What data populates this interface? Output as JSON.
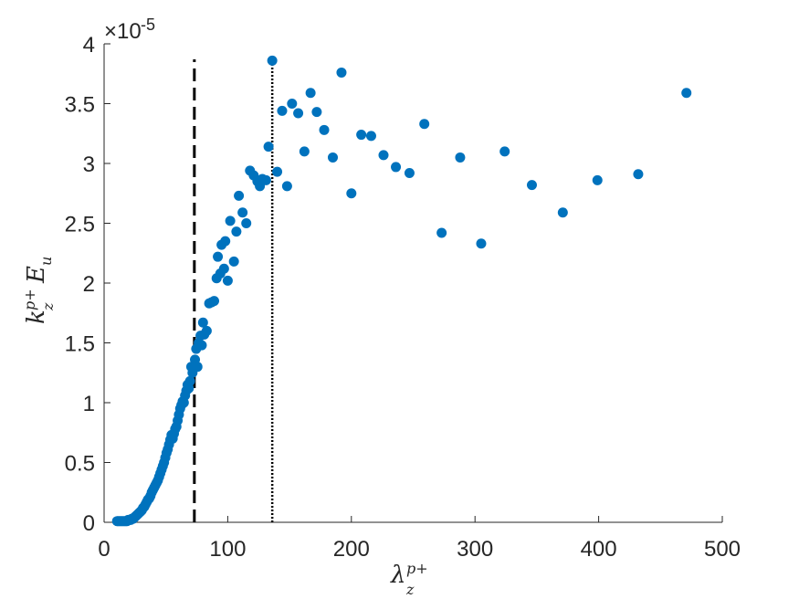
{
  "chart_data": {
    "type": "scatter",
    "xlim": [
      0,
      500
    ],
    "ylim": [
      0,
      4
    ],
    "x_ticks": [
      0,
      100,
      200,
      300,
      400,
      500
    ],
    "y_ticks": [
      0,
      0.5,
      1,
      1.5,
      2,
      2.5,
      3,
      3.5,
      4
    ],
    "x_tick_labels": [
      "0",
      "100",
      "200",
      "300",
      "400",
      "500"
    ],
    "y_tick_labels": [
      "0",
      "0.5",
      "1",
      "1.5",
      "2",
      "2.5",
      "3",
      "3.5",
      "4"
    ],
    "y_multiplier": {
      "base": "×10",
      "exponent": "-5"
    },
    "xlabel": {
      "main": "λ",
      "sup": "p+",
      "sub": "z"
    },
    "ylabel": {
      "main": "k",
      "sup": "p+",
      "sub": "z",
      "tail": "E",
      "tail_sub": "u"
    },
    "marker_color": "#0072BD",
    "grid": false,
    "vertical_lines": [
      {
        "x": 73,
        "style": "dashed",
        "y_top": 3.87
      },
      {
        "x": 136,
        "style": "dotted",
        "y_top": 3.87
      }
    ],
    "points": [
      [
        10.5,
        0.01
      ],
      [
        11.5,
        0.01
      ],
      [
        12.5,
        0.01
      ],
      [
        13.5,
        0.01
      ],
      [
        14.5,
        0.01
      ],
      [
        15.5,
        0.01
      ],
      [
        16.5,
        0.01
      ],
      [
        17.5,
        0.01
      ],
      [
        18.5,
        0.01
      ],
      [
        19.5,
        0.02
      ],
      [
        20.5,
        0.02
      ],
      [
        21.5,
        0.02
      ],
      [
        22.5,
        0.03
      ],
      [
        23.5,
        0.03
      ],
      [
        24.5,
        0.04
      ],
      [
        25.5,
        0.05
      ],
      [
        26.5,
        0.06
      ],
      [
        27.5,
        0.07
      ],
      [
        28.5,
        0.08
      ],
      [
        29.5,
        0.09
      ],
      [
        30.5,
        0.1
      ],
      [
        31.5,
        0.12
      ],
      [
        32.5,
        0.13
      ],
      [
        33.5,
        0.15
      ],
      [
        34.5,
        0.17
      ],
      [
        35.5,
        0.19
      ],
      [
        36.5,
        0.2
      ],
      [
        37.5,
        0.22
      ],
      [
        38.5,
        0.25
      ],
      [
        39.5,
        0.27
      ],
      [
        40.5,
        0.29
      ],
      [
        41.5,
        0.31
      ],
      [
        42.5,
        0.33
      ],
      [
        43.5,
        0.35
      ],
      [
        44.5,
        0.38
      ],
      [
        45.5,
        0.41
      ],
      [
        46.5,
        0.44
      ],
      [
        47.5,
        0.47
      ],
      [
        48.5,
        0.5
      ],
      [
        49.5,
        0.54
      ],
      [
        50.5,
        0.58
      ],
      [
        51.5,
        0.61
      ],
      [
        52.5,
        0.65
      ],
      [
        53.5,
        0.69
      ],
      [
        54.5,
        0.73
      ],
      [
        55.5,
        0.7
      ],
      [
        56.5,
        0.74
      ],
      [
        57.5,
        0.78
      ],
      [
        58.5,
        0.8
      ],
      [
        59.5,
        0.85
      ],
      [
        60.5,
        0.9
      ],
      [
        61.5,
        0.95
      ],
      [
        62.5,
        0.98
      ],
      [
        63.5,
        1.01
      ],
      [
        64.5,
        1.0
      ],
      [
        65.5,
        1.06
      ],
      [
        66.5,
        1.1
      ],
      [
        67.5,
        1.15
      ],
      [
        68.5,
        1.12
      ],
      [
        69.5,
        1.18
      ],
      [
        70.5,
        1.3
      ],
      [
        71.5,
        1.25
      ],
      [
        72.5,
        1.29
      ],
      [
        73.5,
        1.36
      ],
      [
        74.5,
        1.45
      ],
      [
        75.5,
        1.3
      ],
      [
        76.5,
        1.5
      ],
      [
        78,
        1.56
      ],
      [
        79,
        1.48
      ],
      [
        80,
        1.67
      ],
      [
        81,
        1.57
      ],
      [
        83,
        1.6
      ],
      [
        85,
        1.83
      ],
      [
        87,
        1.84
      ],
      [
        89,
        1.85
      ],
      [
        91,
        2.04
      ],
      [
        92,
        2.22
      ],
      [
        94,
        2.08
      ],
      [
        95,
        2.32
      ],
      [
        97,
        2.12
      ],
      [
        98,
        2.35
      ],
      [
        100,
        2.02
      ],
      [
        102,
        2.52
      ],
      [
        105,
        2.18
      ],
      [
        107,
        2.43
      ],
      [
        109,
        2.73
      ],
      [
        112,
        2.59
      ],
      [
        115,
        2.5
      ],
      [
        118,
        2.94
      ],
      [
        121,
        2.9
      ],
      [
        124,
        2.85
      ],
      [
        126,
        2.81
      ],
      [
        128,
        2.87
      ],
      [
        131,
        2.86
      ],
      [
        133,
        3.14
      ],
      [
        136,
        3.86
      ],
      [
        140,
        2.93
      ],
      [
        144,
        3.44
      ],
      [
        148,
        2.81
      ],
      [
        152,
        3.5
      ],
      [
        157,
        3.42
      ],
      [
        162,
        3.1
      ],
      [
        167,
        3.59
      ],
      [
        172,
        3.43
      ],
      [
        178,
        3.28
      ],
      [
        185,
        3.05
      ],
      [
        192,
        3.76
      ],
      [
        200,
        2.75
      ],
      [
        208,
        3.24
      ],
      [
        216,
        3.23
      ],
      [
        226,
        3.07
      ],
      [
        236,
        2.97
      ],
      [
        247,
        2.92
      ],
      [
        259,
        3.33
      ],
      [
        273,
        2.42
      ],
      [
        288,
        3.05
      ],
      [
        305,
        2.33
      ],
      [
        324,
        3.1
      ],
      [
        346,
        2.82
      ],
      [
        371,
        2.59
      ],
      [
        399,
        2.86
      ],
      [
        432,
        2.91
      ],
      [
        471,
        3.59
      ]
    ]
  }
}
